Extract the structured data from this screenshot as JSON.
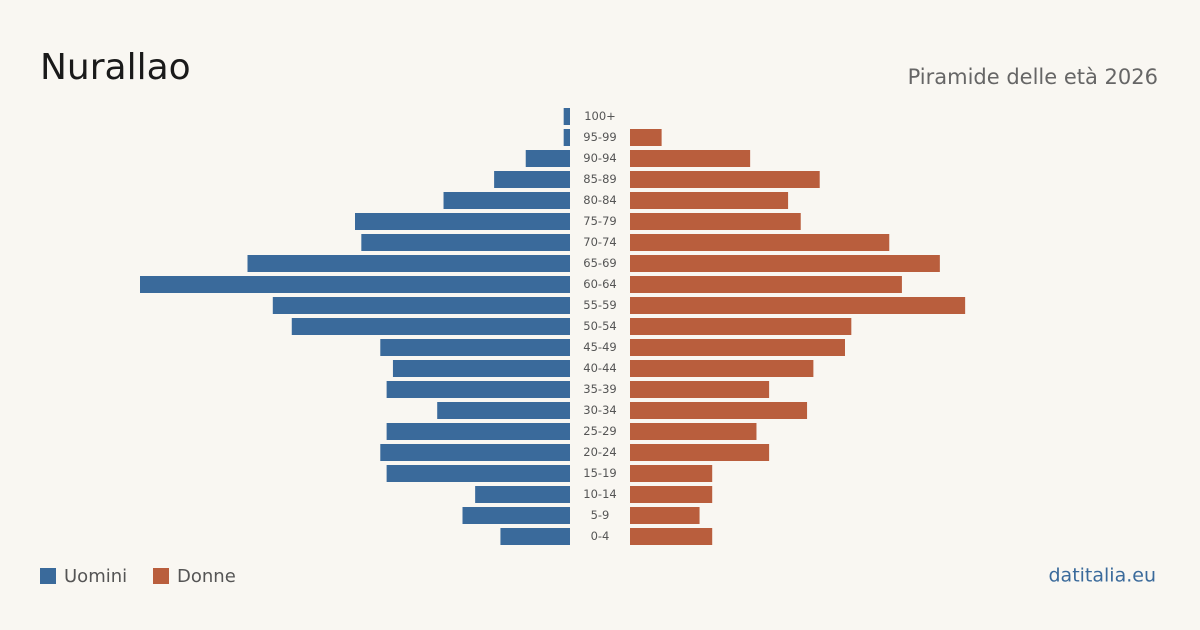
{
  "chart_data": {
    "type": "pyramid",
    "title": "Nurallao",
    "subtitle": "Piramide delle età 2026",
    "source": "datitalia.eu",
    "categories": [
      "100+",
      "95-99",
      "90-94",
      "85-89",
      "80-84",
      "75-79",
      "70-74",
      "65-69",
      "60-64",
      "55-59",
      "50-54",
      "45-49",
      "40-44",
      "35-39",
      "30-34",
      "25-29",
      "20-24",
      "15-19",
      "10-14",
      "5-9",
      "0-4"
    ],
    "series": [
      {
        "name": "Uomini",
        "color": "#3a6a9b",
        "values": [
          1,
          1,
          7,
          12,
          20,
          34,
          33,
          51,
          68,
          47,
          44,
          30,
          28,
          29,
          21,
          29,
          30,
          29,
          15,
          17,
          11
        ]
      },
      {
        "name": "Donne",
        "color": "#b95e3d",
        "values": [
          0,
          5,
          19,
          30,
          25,
          27,
          41,
          49,
          43,
          53,
          35,
          34,
          29,
          22,
          28,
          20,
          22,
          13,
          13,
          11,
          13
        ]
      }
    ]
  }
}
